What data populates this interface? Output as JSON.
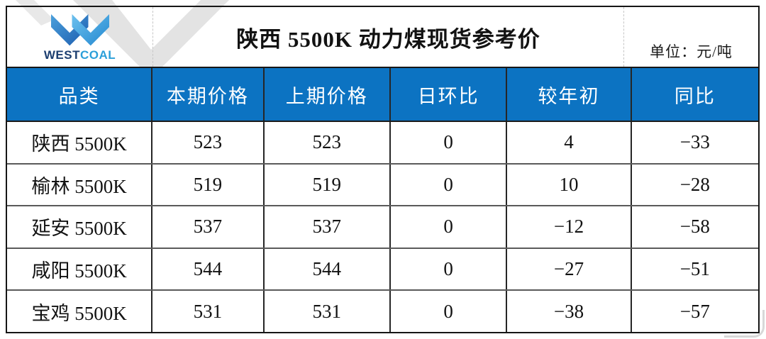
{
  "logo": {
    "west": "WEST",
    "coal": "COAL"
  },
  "header": {
    "title": "陕西 5500K 动力煤现货参考价",
    "unit_label": "单位：元/吨"
  },
  "chart_data": {
    "type": "table",
    "title": "陕西 5500K 动力煤现货参考价",
    "unit": "元/吨",
    "columns": [
      "品类",
      "本期价格",
      "上期价格",
      "日环比",
      "较年初",
      "同比"
    ],
    "column_keys": [
      "category",
      "current-price",
      "previous-price",
      "daily-change",
      "vs-year-start",
      "yoy"
    ],
    "rows": [
      [
        "陕西 5500K",
        523,
        523,
        0,
        4,
        -33
      ],
      [
        "榆林 5500K",
        519,
        519,
        0,
        10,
        -28
      ],
      [
        "延安 5500K",
        537,
        537,
        0,
        -12,
        -58
      ],
      [
        "咸阳 5500K",
        544,
        544,
        0,
        -27,
        -51
      ],
      [
        "宝鸡 5500K",
        531,
        531,
        0,
        -38,
        -57
      ]
    ]
  },
  "colors": {
    "header_bg": "#0c73c2",
    "logo_west_text": "#1c3e70",
    "logo_coal_text": "#2b9fd9",
    "logo_dark_chevron": "#1d5cae",
    "logo_light_chevron": "#2388d0",
    "watermark": "#e3e3e3",
    "grid_line": "#262626"
  }
}
